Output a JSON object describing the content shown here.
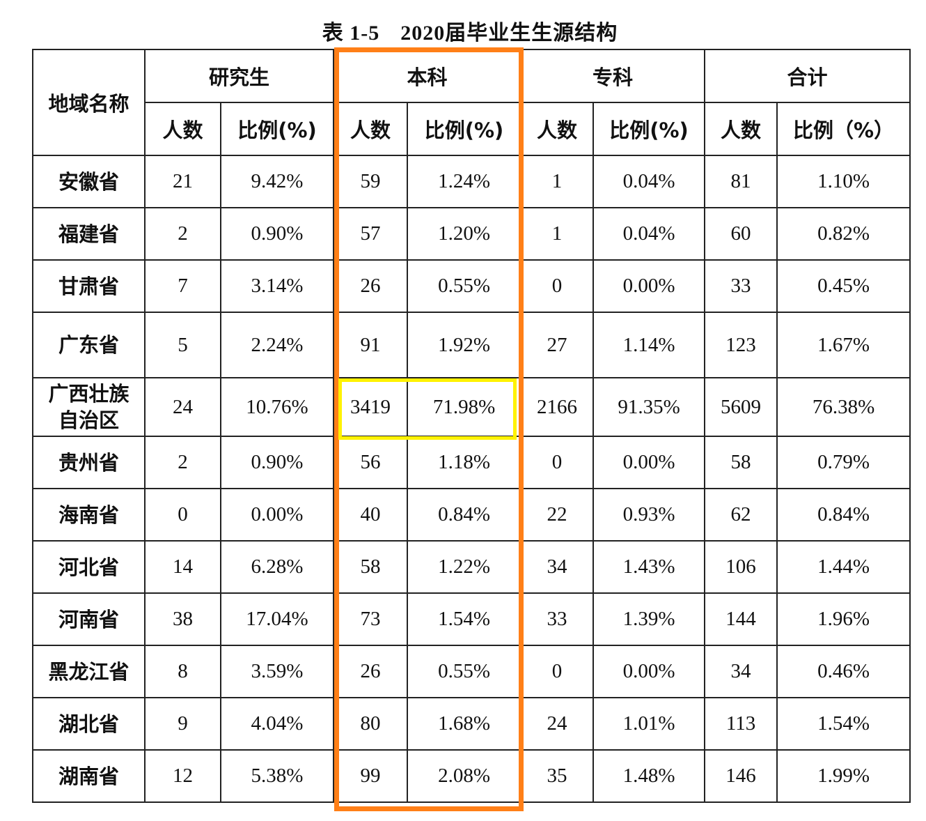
{
  "title": {
    "table_no": "表 1-5",
    "text": "2020届毕业生生源结构"
  },
  "headers": {
    "region": "地域名称",
    "groups": [
      "研究生",
      "本科",
      "专科",
      "合计"
    ],
    "sub": [
      "人数",
      "比例(%)",
      "人数",
      "比例(%)",
      "人数",
      "比例(%)",
      "人数",
      "比例（%）"
    ]
  },
  "highlights": {
    "column_box_color": "#ff7f17",
    "column_box_target": "本科",
    "cell_box_color": "#fff200",
    "cell_box_target": "广西壮族自治区 本科"
  },
  "rows": [
    {
      "region": "安徽省",
      "values": [
        "21",
        "9.42%",
        "59",
        "1.24%",
        "1",
        "0.04%",
        "81",
        "1.10%"
      ]
    },
    {
      "region": "福建省",
      "values": [
        "2",
        "0.90%",
        "57",
        "1.20%",
        "1",
        "0.04%",
        "60",
        "0.82%"
      ]
    },
    {
      "region": "甘肃省",
      "values": [
        "7",
        "3.14%",
        "26",
        "0.55%",
        "0",
        "0.00%",
        "33",
        "0.45%"
      ]
    },
    {
      "region": "广东省",
      "values": [
        "5",
        "2.24%",
        "91",
        "1.92%",
        "27",
        "1.14%",
        "123",
        "1.67%"
      ]
    },
    {
      "region": "广西壮族自治区",
      "region_lines": [
        "广西壮族",
        "自治区"
      ],
      "values": [
        "24",
        "10.76%",
        "3419",
        "71.98%",
        "2166",
        "91.35%",
        "5609",
        "76.38%"
      ]
    },
    {
      "region": "贵州省",
      "values": [
        "2",
        "0.90%",
        "56",
        "1.18%",
        "0",
        "0.00%",
        "58",
        "0.79%"
      ]
    },
    {
      "region": "海南省",
      "values": [
        "0",
        "0.00%",
        "40",
        "0.84%",
        "22",
        "0.93%",
        "62",
        "0.84%"
      ]
    },
    {
      "region": "河北省",
      "values": [
        "14",
        "6.28%",
        "58",
        "1.22%",
        "34",
        "1.43%",
        "106",
        "1.44%"
      ]
    },
    {
      "region": "河南省",
      "values": [
        "38",
        "17.04%",
        "73",
        "1.54%",
        "33",
        "1.39%",
        "144",
        "1.96%"
      ]
    },
    {
      "region": "黑龙江省",
      "values": [
        "8",
        "3.59%",
        "26",
        "0.55%",
        "0",
        "0.00%",
        "34",
        "0.46%"
      ]
    },
    {
      "region": "湖北省",
      "values": [
        "9",
        "4.04%",
        "80",
        "1.68%",
        "24",
        "1.01%",
        "113",
        "1.54%"
      ]
    },
    {
      "region": "湖南省",
      "values": [
        "12",
        "5.38%",
        "99",
        "2.08%",
        "35",
        "1.48%",
        "146",
        "1.99%"
      ]
    }
  ]
}
